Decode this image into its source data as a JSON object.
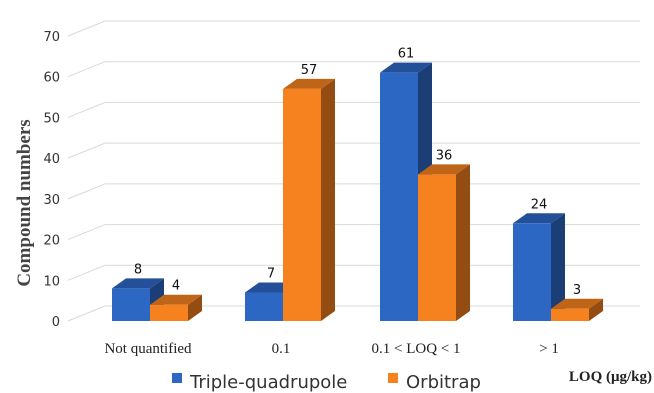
{
  "chart_data": {
    "type": "bar",
    "categories": [
      "Not quantified",
      "0.1",
      "0.1 < LOQ < 1",
      "> 1"
    ],
    "series": [
      {
        "name": "Triple-quadrupole",
        "values": [
          8,
          7,
          61,
          24
        ],
        "color": "#2d67c4"
      },
      {
        "name": "Orbitrap",
        "values": [
          4,
          57,
          36,
          3
        ],
        "color": "#f5811f"
      }
    ],
    "ylabel": "Compound numbers",
    "xlabel": "LOQ (μg/kg)",
    "ylim": [
      0,
      70
    ],
    "yticks": [
      0,
      10,
      20,
      30,
      40,
      50,
      60,
      70
    ],
    "grid": true,
    "legend_position": "bottom",
    "style": "3d-clustered-column"
  }
}
